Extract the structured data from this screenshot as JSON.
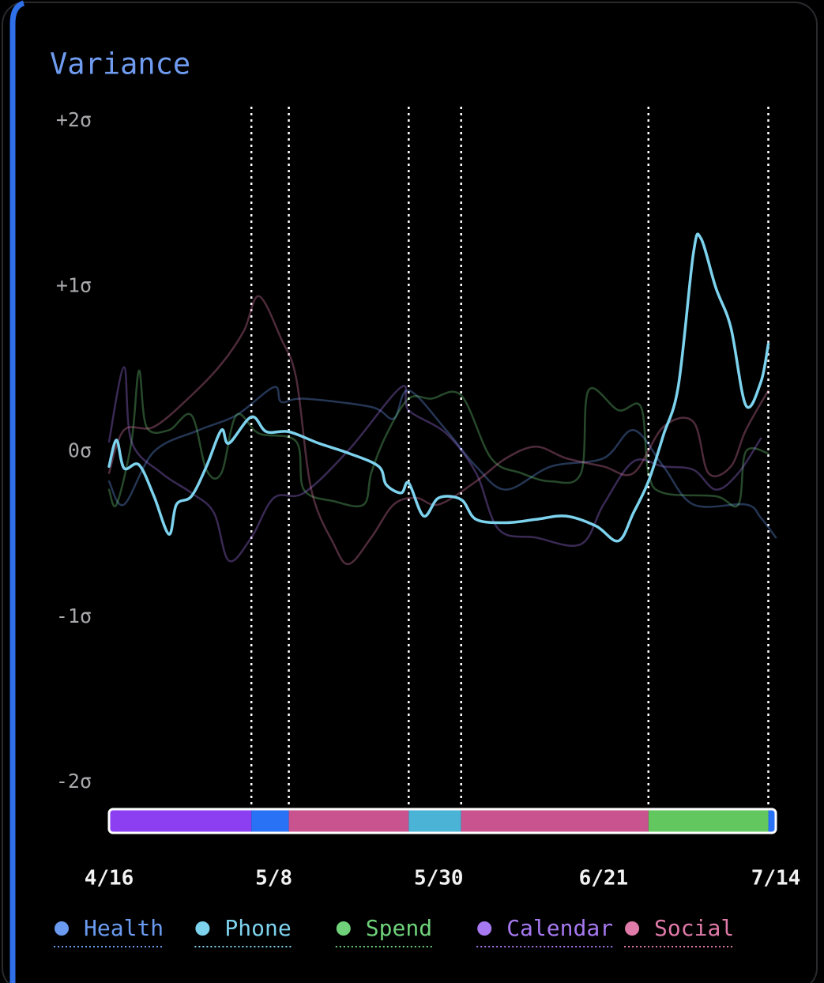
{
  "chart_data": {
    "type": "line",
    "title": "Variance",
    "xlim": [
      0,
      89
    ],
    "xticks": [
      {
        "value": 0,
        "label": "4/16"
      },
      {
        "value": 22,
        "label": "5/8"
      },
      {
        "value": 44,
        "label": "5/30"
      },
      {
        "value": 66,
        "label": "6/21"
      },
      {
        "value": 89,
        "label": "7/14"
      }
    ],
    "ylim": [
      -2,
      2
    ],
    "yticks": [
      {
        "value": 2,
        "label": "+2σ"
      },
      {
        "value": 1,
        "label": "+1σ"
      },
      {
        "value": 0,
        "label": "0σ"
      },
      {
        "value": -1,
        "label": "-1σ"
      },
      {
        "value": -2,
        "label": "-2σ"
      }
    ],
    "markers": [
      19,
      24,
      40,
      47,
      72,
      88
    ],
    "segments": [
      {
        "start": 0,
        "end": 19,
        "color": "#8b3ff0"
      },
      {
        "start": 19,
        "end": 24,
        "color": "#2a72f5"
      },
      {
        "start": 24,
        "end": 40,
        "color": "#c9538f"
      },
      {
        "start": 40,
        "end": 47,
        "color": "#4ab3d6"
      },
      {
        "start": 47,
        "end": 72,
        "color": "#c9538f"
      },
      {
        "start": 72,
        "end": 88,
        "color": "#62c75e"
      },
      {
        "start": 88,
        "end": 89,
        "color": "#2a72f5"
      }
    ],
    "series": [
      {
        "name": "Health",
        "color": "#6a9bf0",
        "opacity": 0.35,
        "x": [
          0,
          2,
          6,
          12,
          17,
          22,
          23,
          26,
          35,
          38,
          40,
          45,
          49,
          53,
          59,
          66,
          70,
          74,
          78,
          85,
          87,
          89
        ],
        "values": [
          -0.18,
          -0.32,
          0,
          0.13,
          0.22,
          0.39,
          0.3,
          0.32,
          0.27,
          0.2,
          0.37,
          0.13,
          -0.09,
          -0.23,
          -0.09,
          -0.04,
          0.13,
          -0.09,
          -0.32,
          -0.32,
          -0.4,
          -0.52
        ]
      },
      {
        "name": "Phone",
        "color": "#7dd3ee",
        "opacity": 1,
        "x": [
          0,
          1,
          2,
          4,
          6,
          8,
          9,
          11,
          13,
          15,
          16,
          19,
          21,
          24,
          28,
          32,
          36,
          37,
          39,
          40,
          42,
          44,
          47,
          49,
          53,
          57,
          61,
          65,
          68,
          70,
          72,
          74,
          76,
          78,
          79,
          81,
          83,
          85,
          87,
          88
        ],
        "values": [
          -0.09,
          0.07,
          -0.1,
          -0.08,
          -0.27,
          -0.5,
          -0.32,
          -0.27,
          -0.09,
          0.13,
          0.05,
          0.21,
          0.12,
          0.12,
          0.05,
          -0.01,
          -0.09,
          -0.2,
          -0.25,
          -0.19,
          -0.39,
          -0.28,
          -0.29,
          -0.41,
          -0.43,
          -0.41,
          -0.39,
          -0.45,
          -0.54,
          -0.37,
          -0.18,
          0.1,
          0.4,
          1.2,
          1.29,
          0.99,
          0.75,
          0.28,
          0.42,
          0.65
        ]
      },
      {
        "name": "Spend",
        "color": "#6fd27a",
        "opacity": 0.35,
        "x": [
          0,
          1,
          3,
          4,
          5,
          8,
          11,
          13,
          15,
          17,
          20,
          25,
          26,
          30,
          34,
          35,
          37,
          40,
          43,
          47,
          51,
          55,
          59,
          63,
          64,
          68,
          71,
          72,
          74,
          81,
          84,
          85,
          88
        ],
        "values": [
          -0.23,
          -0.32,
          0.06,
          0.49,
          0.15,
          0.13,
          0.22,
          -0.11,
          -0.13,
          0.22,
          0.11,
          0.06,
          -0.23,
          -0.3,
          -0.32,
          -0.13,
          0.1,
          0.32,
          0.32,
          0.34,
          -0.04,
          -0.13,
          -0.18,
          -0.13,
          0.37,
          0.25,
          0.27,
          -0.13,
          -0.25,
          -0.27,
          -0.32,
          0,
          -0.01
        ]
      },
      {
        "name": "Calendar",
        "color": "#a679f0",
        "opacity": 0.35,
        "x": [
          0,
          2,
          3,
          7,
          11,
          14,
          16,
          19,
          22,
          26,
          32,
          39,
          40,
          45,
          49,
          52,
          57,
          63,
          66,
          70,
          74,
          78,
          81,
          84,
          87
        ],
        "values": [
          0.06,
          0.51,
          0.06,
          -0.13,
          -0.25,
          -0.37,
          -0.66,
          -0.52,
          -0.28,
          -0.25,
          0.01,
          0.39,
          0.25,
          0.11,
          -0.13,
          -0.47,
          -0.52,
          -0.56,
          -0.32,
          -0.06,
          -0.09,
          -0.11,
          -0.23,
          -0.13,
          0.08
        ]
      },
      {
        "name": "Social",
        "color": "#e07aa8",
        "opacity": 0.35,
        "x": [
          0,
          2,
          6,
          11,
          15,
          18,
          20,
          23,
          25,
          27,
          30,
          32,
          35,
          38,
          41,
          44,
          49,
          53,
          57,
          61,
          66,
          70,
          74,
          78,
          80,
          83,
          85,
          88
        ],
        "values": [
          -0.13,
          0.13,
          0.15,
          0.34,
          0.53,
          0.73,
          0.94,
          0.68,
          0.44,
          -0.23,
          -0.56,
          -0.68,
          -0.52,
          -0.32,
          -0.28,
          -0.32,
          -0.18,
          -0.04,
          0.03,
          -0.04,
          -0.09,
          -0.13,
          0.15,
          0.18,
          -0.13,
          -0.09,
          0.13,
          0.37
        ]
      }
    ],
    "draw_order": [
      0,
      2,
      3,
      4,
      1
    ]
  }
}
